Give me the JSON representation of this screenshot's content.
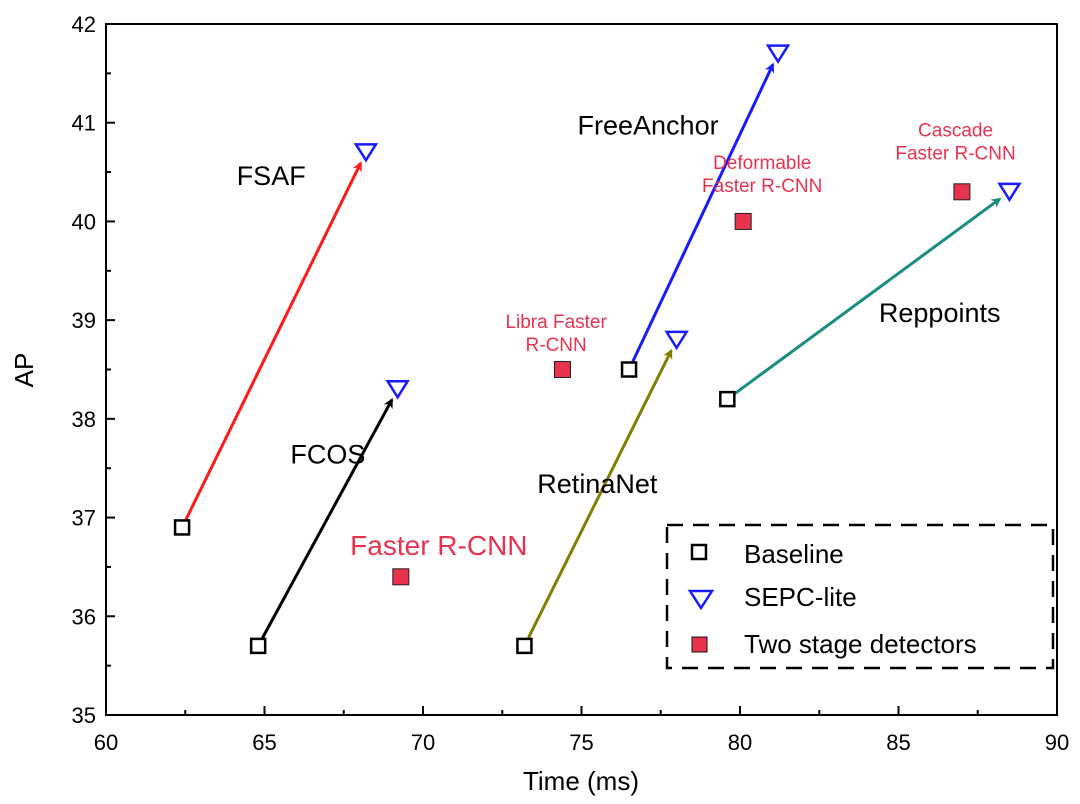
{
  "chart_data": {
    "type": "scatter",
    "title": "",
    "xlabel": "Time (ms)",
    "ylabel": "AP",
    "xlim": [
      60,
      90
    ],
    "ylim": [
      35,
      42
    ],
    "xticks": [
      "60",
      "65",
      "70",
      "75",
      "80",
      "85",
      "90"
    ],
    "yticks": [
      "35",
      "36",
      "37",
      "38",
      "39",
      "40",
      "41",
      "42"
    ],
    "grid": false,
    "legend": {
      "position": "bottom-right",
      "entries": [
        "Baseline",
        "SEPC-lite",
        "Two stage detectors"
      ]
    },
    "arrow_pairs": [
      {
        "name": "FSAF",
        "color": "#ff1a1a",
        "baseline": [
          62.4,
          36.9
        ],
        "sepc": [
          68.2,
          40.7
        ]
      },
      {
        "name": "FCOS",
        "color": "#000000",
        "baseline": [
          64.8,
          35.7
        ],
        "sepc": [
          69.2,
          38.3
        ]
      },
      {
        "name": "RetinaNet",
        "color": "#7f7f00",
        "baseline": [
          73.2,
          35.7
        ],
        "sepc": [
          78.0,
          38.8
        ]
      },
      {
        "name": "FreeAnchor",
        "color": "#1a1aff",
        "baseline": [
          76.5,
          38.5
        ],
        "sepc": [
          81.2,
          41.7
        ]
      },
      {
        "name": "Reppoints",
        "color": "#1a8c80",
        "baseline": [
          79.6,
          38.2
        ],
        "sepc": [
          88.5,
          40.3
        ]
      }
    ],
    "two_stage": [
      {
        "label": "Faster R-CNN",
        "x": 69.3,
        "y": 36.4
      },
      {
        "label_lines": [
          "Libra Faster",
          "R-CNN"
        ],
        "x": 74.4,
        "y": 38.5
      },
      {
        "label_lines": [
          "Deformable",
          "Faster R-CNN"
        ],
        "x": 80.1,
        "y": 40.0
      },
      {
        "label_lines": [
          "Cascade",
          "Faster R-CNN"
        ],
        "x": 87.0,
        "y": 40.3
      }
    ]
  }
}
